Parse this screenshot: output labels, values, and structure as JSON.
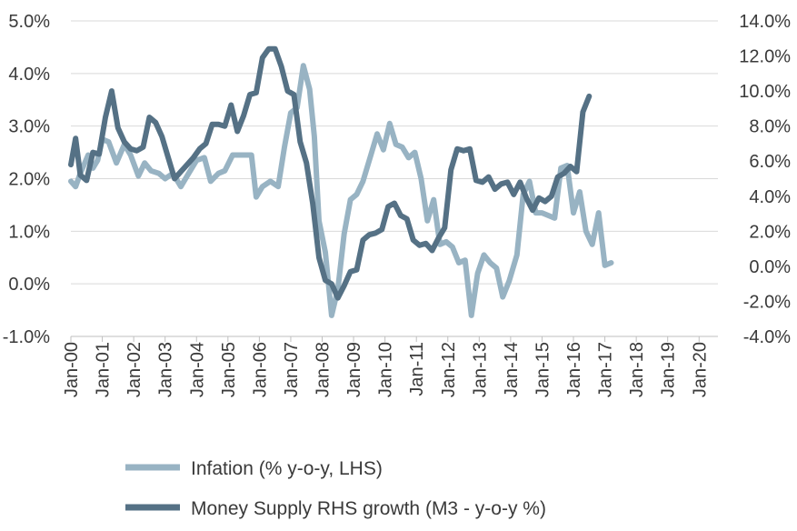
{
  "chart_data": {
    "type": "line",
    "title": "",
    "x_tick_labels": [
      "Jan-00",
      "Jan-01",
      "Jan-02",
      "Jan-03",
      "Jan-04",
      "Jan-05",
      "Jan-06",
      "Jan-07",
      "Jan-08",
      "Jan-09",
      "Jan-10",
      "Jan-11",
      "Jan-12",
      "Jan-13",
      "Jan-14",
      "Jan-15",
      "Jan-16",
      "Jan-17",
      "Jan-18",
      "Jan-19",
      "Jan-20"
    ],
    "x_range": [
      2000.0,
      2020.6
    ],
    "y_left": {
      "range": [
        -1.0,
        5.0
      ],
      "tick_labels": [
        "-1.0%",
        "0.0%",
        "1.0%",
        "2.0%",
        "3.0%",
        "4.0%",
        "5.0%"
      ],
      "tick_values": [
        -1,
        0,
        1,
        2,
        3,
        4,
        5
      ]
    },
    "y_right": {
      "range": [
        -4.0,
        14.0
      ],
      "tick_labels": [
        "-4.0%",
        "-2.0%",
        "0.0%",
        "2.0%",
        "4.0%",
        "6.0%",
        "8.0%",
        "10.0%",
        "12.0%",
        "14.0%"
      ],
      "tick_values": [
        -4,
        -2,
        0,
        2,
        4,
        6,
        8,
        10,
        12,
        14
      ]
    },
    "grid": "horizontal",
    "legend_position": "bottom",
    "series": [
      {
        "name": "Infation (% y-o-y, LHS)",
        "axis": "left",
        "color": "#98b3c3",
        "points": [
          [
            2000.0,
            1.95
          ],
          [
            2000.15,
            1.85
          ],
          [
            2000.3,
            2.1
          ],
          [
            2000.55,
            2.45
          ],
          [
            2000.7,
            2.2
          ],
          [
            2000.85,
            2.35
          ],
          [
            2001.0,
            2.75
          ],
          [
            2001.2,
            2.7
          ],
          [
            2001.45,
            2.3
          ],
          [
            2001.7,
            2.65
          ],
          [
            2001.9,
            2.45
          ],
          [
            2002.15,
            2.05
          ],
          [
            2002.35,
            2.3
          ],
          [
            2002.55,
            2.15
          ],
          [
            2002.8,
            2.1
          ],
          [
            2003.0,
            2.0
          ],
          [
            2003.25,
            2.1
          ],
          [
            2003.5,
            1.85
          ],
          [
            2003.75,
            2.1
          ],
          [
            2004.0,
            2.35
          ],
          [
            2004.25,
            2.4
          ],
          [
            2004.45,
            1.95
          ],
          [
            2004.7,
            2.1
          ],
          [
            2004.9,
            2.15
          ],
          [
            2005.15,
            2.45
          ],
          [
            2005.45,
            2.45
          ],
          [
            2005.75,
            2.45
          ],
          [
            2005.9,
            1.65
          ],
          [
            2006.1,
            1.85
          ],
          [
            2006.35,
            1.95
          ],
          [
            2006.6,
            1.85
          ],
          [
            2006.8,
            2.6
          ],
          [
            2007.0,
            3.25
          ],
          [
            2007.2,
            3.35
          ],
          [
            2007.4,
            4.15
          ],
          [
            2007.6,
            3.7
          ],
          [
            2007.75,
            2.8
          ],
          [
            2007.9,
            1.2
          ],
          [
            2008.1,
            0.6
          ],
          [
            2008.3,
            -0.6
          ],
          [
            2008.5,
            -0.1
          ],
          [
            2008.7,
            0.95
          ],
          [
            2008.9,
            1.6
          ],
          [
            2009.1,
            1.7
          ],
          [
            2009.3,
            1.95
          ],
          [
            2009.55,
            2.45
          ],
          [
            2009.75,
            2.85
          ],
          [
            2009.95,
            2.55
          ],
          [
            2010.15,
            3.05
          ],
          [
            2010.35,
            2.65
          ],
          [
            2010.55,
            2.6
          ],
          [
            2010.75,
            2.4
          ],
          [
            2010.95,
            2.5
          ],
          [
            2011.15,
            2.0
          ],
          [
            2011.35,
            1.2
          ],
          [
            2011.55,
            1.6
          ],
          [
            2011.75,
            0.75
          ],
          [
            2011.95,
            0.8
          ],
          [
            2012.15,
            0.7
          ],
          [
            2012.35,
            0.4
          ],
          [
            2012.55,
            0.45
          ],
          [
            2012.75,
            -0.6
          ],
          [
            2012.95,
            0.2
          ],
          [
            2013.15,
            0.55
          ],
          [
            2013.35,
            0.4
          ],
          [
            2013.55,
            0.3
          ],
          [
            2013.75,
            -0.25
          ],
          [
            2013.95,
            0.05
          ],
          [
            2014.2,
            0.55
          ],
          [
            2014.4,
            1.7
          ],
          [
            2014.6,
            1.95
          ],
          [
            2014.8,
            1.35
          ],
          [
            2015.0,
            1.35
          ],
          [
            2015.2,
            1.3
          ],
          [
            2015.4,
            1.25
          ],
          [
            2015.6,
            2.2
          ],
          [
            2015.8,
            2.25
          ],
          [
            2016.0,
            1.35
          ],
          [
            2016.2,
            1.75
          ],
          [
            2016.4,
            1.0
          ],
          [
            2016.6,
            0.75
          ],
          [
            2016.8,
            1.35
          ],
          [
            2017.0,
            0.35
          ],
          [
            2017.2,
            0.4
          ]
        ]
      },
      {
        "name": "Money Supply RHS growth (M3 - y-o-y %)",
        "axis": "right",
        "color": "#557185",
        "points": [
          [
            2000.0,
            5.8
          ],
          [
            2000.15,
            7.3
          ],
          [
            2000.3,
            5.2
          ],
          [
            2000.5,
            4.9
          ],
          [
            2000.7,
            6.5
          ],
          [
            2000.9,
            6.4
          ],
          [
            2001.1,
            8.5
          ],
          [
            2001.3,
            10.0
          ],
          [
            2001.5,
            7.9
          ],
          [
            2001.7,
            7.1
          ],
          [
            2001.9,
            6.7
          ],
          [
            2002.1,
            6.6
          ],
          [
            2002.3,
            6.8
          ],
          [
            2002.5,
            8.5
          ],
          [
            2002.7,
            8.2
          ],
          [
            2002.9,
            7.4
          ],
          [
            2003.1,
            6.2
          ],
          [
            2003.3,
            5.0
          ],
          [
            2003.5,
            5.4
          ],
          [
            2003.7,
            5.8
          ],
          [
            2003.9,
            6.2
          ],
          [
            2004.1,
            6.7
          ],
          [
            2004.3,
            7.0
          ],
          [
            2004.5,
            8.1
          ],
          [
            2004.7,
            8.1
          ],
          [
            2004.9,
            8.0
          ],
          [
            2005.1,
            9.2
          ],
          [
            2005.3,
            7.7
          ],
          [
            2005.5,
            8.6
          ],
          [
            2005.7,
            9.8
          ],
          [
            2005.9,
            9.9
          ],
          [
            2006.1,
            11.9
          ],
          [
            2006.3,
            12.4
          ],
          [
            2006.5,
            12.4
          ],
          [
            2006.7,
            11.4
          ],
          [
            2006.9,
            10.0
          ],
          [
            2007.1,
            9.8
          ],
          [
            2007.3,
            7.1
          ],
          [
            2007.5,
            5.9
          ],
          [
            2007.7,
            3.6
          ],
          [
            2007.9,
            0.5
          ],
          [
            2008.1,
            -0.8
          ],
          [
            2008.3,
            -1.0
          ],
          [
            2008.5,
            -1.8
          ],
          [
            2008.7,
            -1.1
          ],
          [
            2008.9,
            -0.3
          ],
          [
            2009.1,
            -0.2
          ],
          [
            2009.3,
            1.5
          ],
          [
            2009.5,
            1.8
          ],
          [
            2009.7,
            1.9
          ],
          [
            2009.9,
            2.1
          ],
          [
            2010.1,
            3.4
          ],
          [
            2010.3,
            3.6
          ],
          [
            2010.5,
            2.9
          ],
          [
            2010.7,
            2.7
          ],
          [
            2010.9,
            1.5
          ],
          [
            2011.1,
            1.2
          ],
          [
            2011.3,
            1.3
          ],
          [
            2011.5,
            0.9
          ],
          [
            2011.7,
            1.6
          ],
          [
            2011.9,
            2.2
          ],
          [
            2012.1,
            5.5
          ],
          [
            2012.3,
            6.7
          ],
          [
            2012.5,
            6.6
          ],
          [
            2012.7,
            6.7
          ],
          [
            2012.9,
            4.9
          ],
          [
            2013.1,
            4.8
          ],
          [
            2013.3,
            5.1
          ],
          [
            2013.5,
            4.4
          ],
          [
            2013.7,
            4.7
          ],
          [
            2013.9,
            4.8
          ],
          [
            2014.1,
            4.1
          ],
          [
            2014.3,
            4.8
          ],
          [
            2014.5,
            3.9
          ],
          [
            2014.7,
            3.2
          ],
          [
            2014.9,
            3.9
          ],
          [
            2015.1,
            3.7
          ],
          [
            2015.3,
            4.0
          ],
          [
            2015.5,
            5.1
          ],
          [
            2015.7,
            5.3
          ],
          [
            2015.9,
            5.7
          ],
          [
            2016.1,
            5.4
          ],
          [
            2016.3,
            8.8
          ],
          [
            2016.5,
            9.7
          ]
        ]
      }
    ]
  }
}
